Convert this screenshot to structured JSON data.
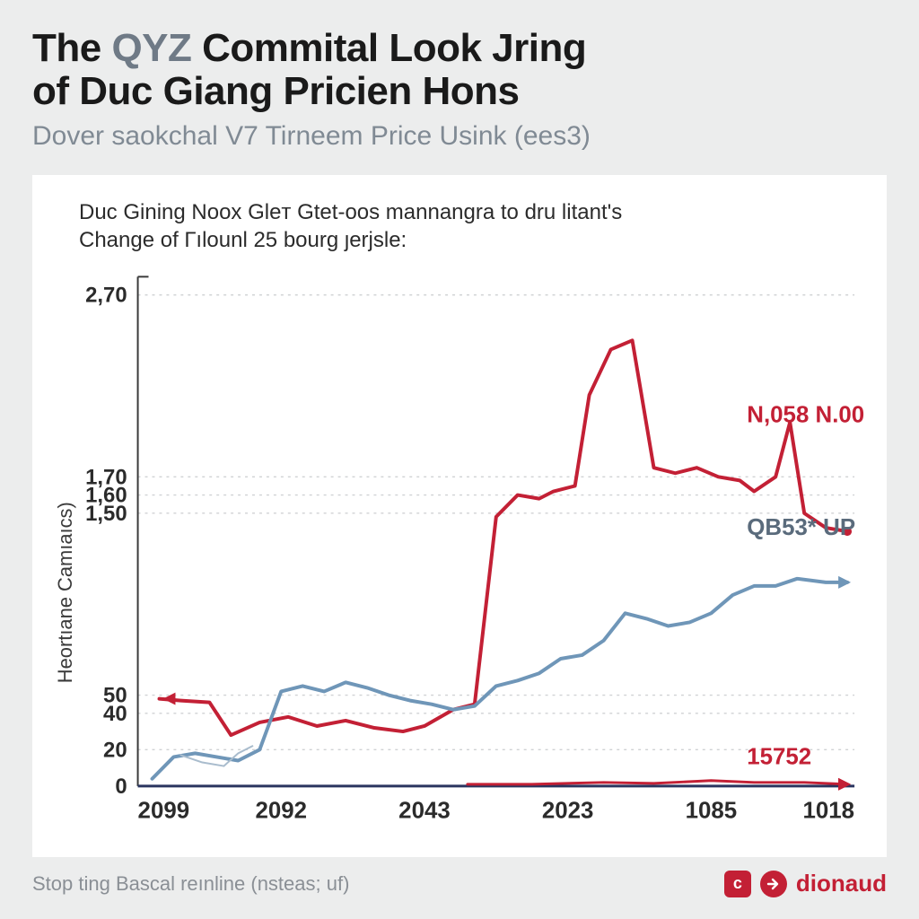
{
  "header": {
    "title_pre": "The ",
    "title_accent": "QYZ",
    "title_mid": " Commital Look Jring",
    "title_line2": "of Duc Giang Pricien Hons",
    "subtitle": "Dover saokchal V7 Tirneem Price Usink (ees3)"
  },
  "card": {
    "intro_line1": "Duc Gining Noox Gleт Gtet-oos mannangra to dru litant's",
    "intro_line2": "Change of Гılounl 25 bourg ȷerjsle:"
  },
  "chart": {
    "type": "line",
    "background_color": "#ffffff",
    "page_background": "#eceded",
    "grid_color": "#d0d2d4",
    "grid_dash": "3,5",
    "axis_color": "#3a3a3a",
    "y_axis_title": "Heortıane Camıaıcs)",
    "y_ticks": [
      {
        "y": 0,
        "label": "0"
      },
      {
        "y": 20,
        "label": "20"
      },
      {
        "y": 50,
        "label": "50"
      },
      {
        "y": 40,
        "label": "40"
      },
      {
        "y": 160,
        "label": "1,60"
      },
      {
        "y": 150,
        "label": "1,50"
      },
      {
        "y": 170,
        "label": "1,70"
      },
      {
        "y": 270,
        "label": "2,70"
      }
    ],
    "x_ticks": [
      "2099",
      "2092",
      "2043",
      "2023",
      "1085",
      "1018"
    ],
    "xlim": [
      0,
      100
    ],
    "ylim": [
      0,
      280
    ],
    "series": [
      {
        "name": "red",
        "color": "#c32035",
        "line_width": 4,
        "label": "N,058 N.00",
        "label_color": "#c32035",
        "label_x": 85,
        "label_y": 200,
        "end_marker_x": 4,
        "end_marker_y": 48,
        "points": [
          [
            3,
            48
          ],
          [
            6,
            47
          ],
          [
            10,
            46
          ],
          [
            13,
            28
          ],
          [
            17,
            35
          ],
          [
            21,
            38
          ],
          [
            25,
            33
          ],
          [
            29,
            36
          ],
          [
            33,
            32
          ],
          [
            37,
            30
          ],
          [
            40,
            33
          ],
          [
            44,
            42
          ],
          [
            47,
            45
          ],
          [
            50,
            148
          ],
          [
            53,
            160
          ],
          [
            56,
            158
          ],
          [
            58,
            162
          ],
          [
            61,
            165
          ],
          [
            63,
            215
          ],
          [
            66,
            240
          ],
          [
            69,
            245
          ],
          [
            72,
            175
          ],
          [
            75,
            172
          ],
          [
            78,
            175
          ],
          [
            81,
            170
          ],
          [
            84,
            168
          ],
          [
            86,
            162
          ],
          [
            89,
            170
          ],
          [
            91,
            200
          ],
          [
            93,
            150
          ],
          [
            96,
            142
          ],
          [
            99,
            140
          ]
        ],
        "end_label": "15752",
        "end_label_x": 94,
        "end_label_y": 12
      },
      {
        "name": "red-baseline",
        "color": "#c32035",
        "line_width": 3,
        "points": [
          [
            46,
            1
          ],
          [
            55,
            1
          ],
          [
            65,
            2
          ],
          [
            72,
            1.5
          ],
          [
            80,
            3
          ],
          [
            86,
            2
          ],
          [
            93,
            2
          ],
          [
            99,
            1
          ]
        ],
        "end_arrow": true
      },
      {
        "name": "blue",
        "color": "#6f96b8",
        "line_width": 4,
        "label": "QB53* UP",
        "label_color": "#5a6b7c",
        "label_x": 85,
        "label_y": 138,
        "points": [
          [
            2,
            4
          ],
          [
            5,
            16
          ],
          [
            8,
            18
          ],
          [
            11,
            16
          ],
          [
            14,
            14
          ],
          [
            17,
            20
          ],
          [
            20,
            52
          ],
          [
            23,
            55
          ],
          [
            26,
            52
          ],
          [
            29,
            57
          ],
          [
            32,
            54
          ],
          [
            35,
            50
          ],
          [
            38,
            47
          ],
          [
            41,
            45
          ],
          [
            44,
            42
          ],
          [
            47,
            44
          ],
          [
            50,
            55
          ],
          [
            53,
            58
          ],
          [
            56,
            62
          ],
          [
            59,
            70
          ],
          [
            62,
            72
          ],
          [
            65,
            80
          ],
          [
            68,
            95
          ],
          [
            71,
            92
          ],
          [
            74,
            88
          ],
          [
            77,
            90
          ],
          [
            80,
            95
          ],
          [
            83,
            105
          ],
          [
            86,
            110
          ],
          [
            89,
            110
          ],
          [
            92,
            114
          ],
          [
            96,
            112
          ],
          [
            99,
            112
          ]
        ],
        "end_arrow": true
      },
      {
        "name": "blue-thin",
        "color": "#a9bccd",
        "line_width": 2,
        "points": [
          [
            6,
            17
          ],
          [
            9,
            13
          ],
          [
            12,
            11
          ],
          [
            14,
            18
          ],
          [
            16,
            22
          ]
        ]
      }
    ],
    "baseline_color": "#2a355f"
  },
  "footer": {
    "source": "Stop ting Bascal reınline (nsteas; uf)",
    "brand": "dionaud"
  }
}
